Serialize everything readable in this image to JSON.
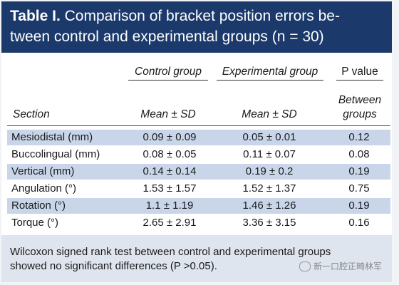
{
  "title": {
    "number": "Table I.",
    "text_line1": "Comparison of bracket position errors be-",
    "text_line2": "tween control and experimental groups (n = 30)"
  },
  "headers": {
    "control_group": "Control group",
    "experimental_group": "Experimental group",
    "p_value": "P value",
    "section": "Section",
    "control_sub": "Mean ± SD",
    "experimental_sub": "Mean ± SD",
    "p_sub_line1": "Between",
    "p_sub_line2": "groups"
  },
  "rows": [
    {
      "section": "Mesiodistal (mm)",
      "control": "0.09 ± 0.09",
      "experimental": "0.05 ± 0.01",
      "p": "0.12"
    },
    {
      "section": "Buccolingual (mm)",
      "control": "0.08 ± 0.05",
      "experimental": "0.11 ± 0.07",
      "p": "0.08"
    },
    {
      "section": "Vertical (mm)",
      "control": "0.14 ± 0.14",
      "experimental": "0.19 ± 0.2",
      "p": "0.19"
    },
    {
      "section": "Angulation (°)",
      "control": "1.53 ± 1.57",
      "experimental": "1.52 ± 1.37",
      "p": "0.75"
    },
    {
      "section": "Rotation (°)",
      "control": "1.1 ± 1.19",
      "experimental": "1.46 ± 1.26",
      "p": "0.19"
    },
    {
      "section": "Torque (°)",
      "control": "2.65 ± 2.91",
      "experimental": "3.36 ± 3.15",
      "p": "0.16"
    }
  ],
  "footnote": {
    "line1": "Wilcoxon signed rank test between control and experimental groups",
    "line2": "showed no significant differences (P >0.05)."
  },
  "watermark": "新一口腔正畸林军"
}
